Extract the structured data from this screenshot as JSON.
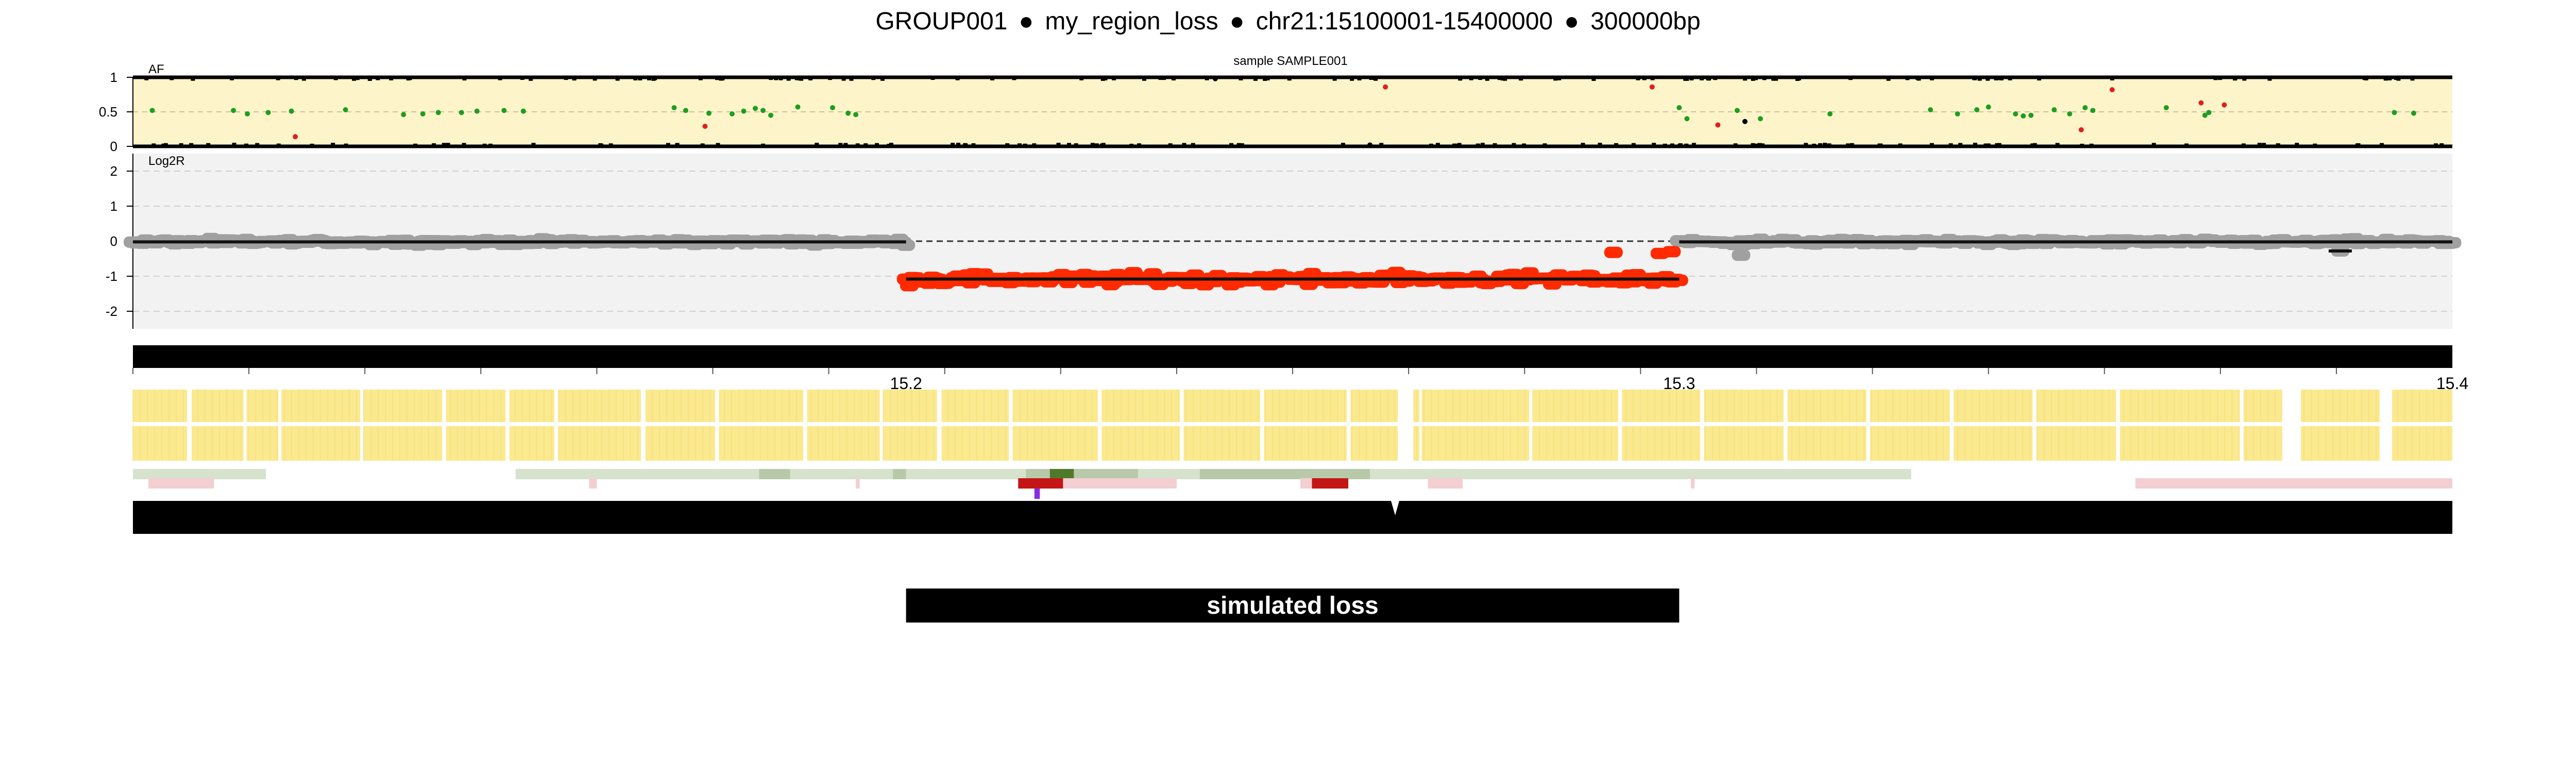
{
  "title": {
    "group": "GROUP001",
    "region": "my_region_loss",
    "locus": "chr21:15100001-15400000",
    "size": "300000bp",
    "separator": "●"
  },
  "colors": {
    "af_background": "#fdf5c9",
    "af_het": "#1e9e1e",
    "af_hom": "#000000",
    "af_odd": "#e02020",
    "log2r_background": "#f2f2f2",
    "log2r_normal": "#a0a0a0",
    "log2r_loss": "#ff2a00",
    "segment_line": "#111111",
    "track_black": "#000000",
    "feature_yellow": "#fbe98f",
    "annotation_green": "#d6e2cc",
    "annotation_dark_green": "#4f7a2a",
    "annotation_pink": "#f3cfd2",
    "annotation_red": "#c41616",
    "annotation_purple": "#8a2be2",
    "call_bar": "#000000",
    "call_text": "#ffffff"
  },
  "chart_data": [
    {
      "type": "scatter",
      "name": "af",
      "title": "sample SAMPLE001",
      "ylabel": "AF",
      "xlim": [
        15100001,
        15400000
      ],
      "ylim": [
        0,
        1
      ],
      "yticks": [
        "1",
        "0.5",
        "0"
      ],
      "grid": true,
      "het_points": [
        [
          15102500,
          0.52
        ],
        [
          15113000,
          0.52
        ],
        [
          15114800,
          0.47
        ],
        [
          15117500,
          0.49
        ],
        [
          15120500,
          0.51
        ],
        [
          15127500,
          0.53
        ],
        [
          15135000,
          0.46
        ],
        [
          15137500,
          0.47
        ],
        [
          15139500,
          0.49
        ],
        [
          15142500,
          0.49
        ],
        [
          15144500,
          0.51
        ],
        [
          15148000,
          0.52
        ],
        [
          15150500,
          0.51
        ],
        [
          15170000,
          0.56
        ],
        [
          15171500,
          0.52
        ],
        [
          15174500,
          0.48
        ],
        [
          15177500,
          0.47
        ],
        [
          15179000,
          0.51
        ],
        [
          15180500,
          0.55
        ],
        [
          15181500,
          0.52
        ],
        [
          15182500,
          0.45
        ],
        [
          15186000,
          0.57
        ],
        [
          15190500,
          0.56
        ],
        [
          15192500,
          0.48
        ],
        [
          15193500,
          0.46
        ],
        [
          15300000,
          0.56
        ],
        [
          15301000,
          0.4
        ],
        [
          15307500,
          0.52
        ],
        [
          15310500,
          0.4
        ],
        [
          15319500,
          0.47
        ],
        [
          15332500,
          0.53
        ],
        [
          15336000,
          0.47
        ],
        [
          15338500,
          0.53
        ],
        [
          15340000,
          0.57
        ],
        [
          15343500,
          0.47
        ],
        [
          15344500,
          0.44
        ],
        [
          15345500,
          0.45
        ],
        [
          15348500,
          0.53
        ],
        [
          15350500,
          0.47
        ],
        [
          15352500,
          0.56
        ],
        [
          15353500,
          0.52
        ],
        [
          15363000,
          0.56
        ],
        [
          15368000,
          0.45
        ],
        [
          15368500,
          0.49
        ],
        [
          15392500,
          0.49
        ],
        [
          15395000,
          0.48
        ]
      ],
      "odd_points": [
        [
          15121000,
          0.14
        ],
        [
          15174000,
          0.29
        ],
        [
          15262000,
          0.86
        ],
        [
          15296500,
          0.86
        ],
        [
          15305000,
          0.31
        ],
        [
          15352000,
          0.24
        ],
        [
          15367500,
          0.63
        ],
        [
          15370500,
          0.6
        ],
        [
          15356000,
          0.82
        ]
      ],
      "hom_points": [
        [
          15308500,
          0.36
        ],
        [
          15260000,
          0.02
        ],
        [
          15240000,
          0.98
        ]
      ]
    },
    {
      "type": "scatter",
      "name": "log2r",
      "ylabel": "Log2R",
      "xlim": [
        15100001,
        15400000
      ],
      "ylim": [
        -2.5,
        2.5
      ],
      "yticks": [
        "2",
        "1",
        "0",
        "-1",
        "-2"
      ],
      "reference_line": 0,
      "segments": [
        {
          "start": 15100001,
          "end": 15200000,
          "value": -0.02,
          "state": "normal"
        },
        {
          "start": 15200000,
          "end": 15300000,
          "value": -1.08,
          "state": "loss"
        },
        {
          "start": 15300000,
          "end": 15400000,
          "value": -0.02,
          "state": "normal"
        },
        {
          "start": 15384000,
          "end": 15387000,
          "value": -0.28,
          "state": "normal"
        }
      ],
      "extra_points": [
        [
          15297500,
          -0.35
        ],
        [
          15299000,
          -0.3
        ],
        [
          15308000,
          -0.4
        ],
        [
          15291500,
          -0.32
        ],
        [
          15243000,
          -1.1
        ],
        [
          15226000,
          -1.05
        ],
        [
          15385500,
          -0.28
        ]
      ]
    },
    {
      "type": "track",
      "name": "genomic-axis",
      "xlim": [
        15100001,
        15400000
      ],
      "tick_labels": [
        {
          "pos": 15200000,
          "label": "15.2"
        },
        {
          "pos": 15300000,
          "label": "15.3"
        },
        {
          "pos": 15400000,
          "label": "15.4"
        }
      ]
    },
    {
      "type": "track",
      "name": "annotations",
      "yellow_gaps": [
        [
          15107000,
          15107600
        ],
        [
          15114300,
          15114700
        ],
        [
          15118800,
          15119200
        ],
        [
          15129400,
          15129800
        ],
        [
          15140000,
          15140500
        ],
        [
          15148200,
          15148700
        ],
        [
          15154500,
          15155000
        ],
        [
          15165700,
          15166300
        ],
        [
          15175300,
          15175800
        ],
        [
          15186700,
          15187200
        ],
        [
          15196600,
          15197000
        ],
        [
          15204000,
          15204600
        ],
        [
          15213300,
          15213800
        ],
        [
          15224800,
          15225300
        ],
        [
          15235400,
          15235900
        ],
        [
          15245800,
          15246300
        ],
        [
          15257000,
          15257500
        ],
        [
          15263600,
          15265600
        ],
        [
          15266400,
          15266700
        ],
        [
          15280600,
          15281000
        ],
        [
          15292100,
          15292600
        ],
        [
          15302700,
          15303200
        ],
        [
          15313500,
          15314000
        ],
        [
          15324200,
          15324700
        ],
        [
          15335000,
          15335500
        ],
        [
          15345700,
          15346200
        ],
        [
          15356500,
          15357000
        ],
        [
          15372500,
          15373000
        ],
        [
          15378000,
          15380400
        ],
        [
          15390600,
          15392200
        ]
      ],
      "green_bands": [
        [
          15100001,
          15117200,
          "light"
        ],
        [
          15149500,
          15330000,
          "light"
        ],
        [
          15181000,
          15185000,
          "mid"
        ],
        [
          15198300,
          15200000,
          "mid"
        ],
        [
          15215500,
          15230000,
          "mid"
        ],
        [
          15218600,
          15221700,
          "dark"
        ],
        [
          15238000,
          15260000,
          "mid"
        ]
      ],
      "pink_bands": [
        [
          15102000,
          15110500
        ],
        [
          15215000,
          15235000
        ],
        [
          15227000,
          15230000
        ],
        [
          15231500,
          15234500
        ],
        [
          15251000,
          15256000
        ],
        [
          15267500,
          15272000
        ],
        [
          15359000,
          15400000
        ],
        [
          15389000,
          15375000
        ],
        [
          15159000,
          15160000
        ],
        [
          15193500,
          15194000
        ],
        [
          15301500,
          15302000
        ]
      ],
      "red_bands": [
        [
          15214500,
          15220300
        ],
        [
          15252500,
          15257200
        ]
      ],
      "purple_marks": [
        [
          15216600,
          15217300
        ]
      ]
    },
    {
      "type": "track",
      "name": "call",
      "xlim": [
        15100001,
        15400000
      ],
      "calls": [
        {
          "start": 15200000,
          "end": 15300000,
          "label": "simulated loss"
        }
      ]
    }
  ]
}
